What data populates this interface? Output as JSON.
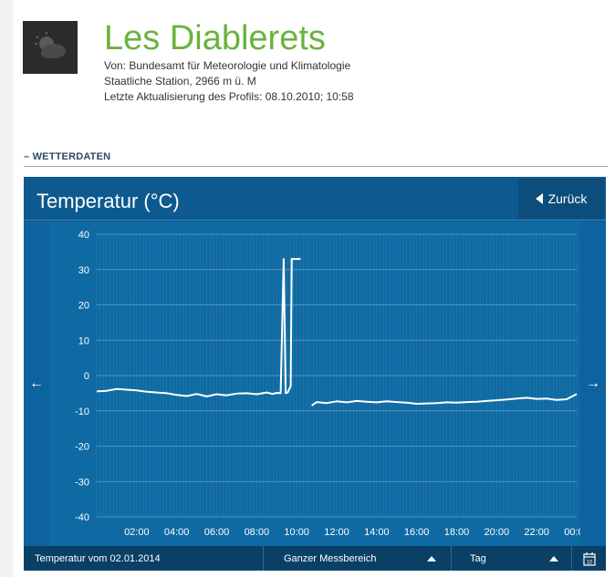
{
  "header": {
    "title": "Les Diablerets",
    "source_line": "Von: Bundesamt für Meteorologie und Klimatologie",
    "station_line": "Staatliche Station, 2966 m ü. M",
    "update_line": "Letzte Aktualisierung des Profils: 08.10.2010; 10:58"
  },
  "section": {
    "label": "– WETTERDATEN"
  },
  "panel": {
    "title": "Temperatur (°C)",
    "back_label": "Zurück"
  },
  "footer": {
    "date_label": "Temperatur vom 02.01.2014",
    "range_label": "Ganzer Messbereich",
    "interval_label": "Tag",
    "calendar_day": "10"
  },
  "colors": {
    "title_green": "#6ab33d",
    "panel_blue": "#0f6aa3",
    "footer_blue": "#0a3f66"
  },
  "chart_data": {
    "type": "line",
    "ylabel": "",
    "xlabel": "",
    "ylim": [
      -40,
      40
    ],
    "yticks": [
      40,
      30,
      20,
      10,
      0,
      -10,
      -20,
      -30,
      -40
    ],
    "xticks": [
      "02:00",
      "04:00",
      "06:00",
      "08:00",
      "10:00",
      "12:00",
      "14:00",
      "16:00",
      "18:00",
      "20:00",
      "22:00",
      "00:00"
    ],
    "xlim_hours": [
      0,
      24
    ],
    "grid": true,
    "series": [
      {
        "segments": [
          [
            [
              0.0,
              -4.5
            ],
            [
              0.5,
              -4.3
            ],
            [
              1.0,
              -3.8
            ],
            [
              1.5,
              -4.0
            ],
            [
              2.0,
              -4.2
            ],
            [
              2.5,
              -4.6
            ],
            [
              3.0,
              -4.8
            ],
            [
              3.5,
              -5.0
            ],
            [
              4.0,
              -5.5
            ],
            [
              4.5,
              -5.8
            ],
            [
              5.0,
              -5.2
            ],
            [
              5.5,
              -5.9
            ],
            [
              6.0,
              -5.3
            ],
            [
              6.5,
              -5.6
            ],
            [
              7.0,
              -5.1
            ],
            [
              7.5,
              -5.0
            ],
            [
              8.0,
              -5.3
            ],
            [
              8.5,
              -4.8
            ],
            [
              8.8,
              -5.2
            ],
            [
              9.0,
              -4.9
            ],
            [
              9.2,
              -5.0
            ],
            [
              9.35,
              33.0
            ],
            [
              9.45,
              -5.0
            ],
            [
              9.55,
              -4.8
            ],
            [
              9.7,
              -3.0
            ],
            [
              9.75,
              33.0
            ],
            [
              10.2,
              33.0
            ]
          ],
          [
            [
              10.75,
              -8.5
            ],
            [
              11.0,
              -7.5
            ],
            [
              11.5,
              -7.8
            ],
            [
              12.0,
              -7.3
            ],
            [
              12.5,
              -7.6
            ],
            [
              13.0,
              -7.2
            ],
            [
              13.5,
              -7.4
            ],
            [
              14.0,
              -7.6
            ],
            [
              14.5,
              -7.3
            ],
            [
              15.0,
              -7.5
            ],
            [
              15.5,
              -7.7
            ],
            [
              16.0,
              -8.0
            ],
            [
              16.5,
              -7.9
            ],
            [
              17.0,
              -7.8
            ],
            [
              17.5,
              -7.6
            ],
            [
              18.0,
              -7.7
            ],
            [
              18.5,
              -7.5
            ],
            [
              19.0,
              -7.4
            ],
            [
              19.5,
              -7.2
            ],
            [
              20.0,
              -7.0
            ],
            [
              20.5,
              -6.8
            ],
            [
              21.0,
              -6.5
            ],
            [
              21.5,
              -6.3
            ],
            [
              22.0,
              -6.6
            ],
            [
              22.5,
              -6.5
            ],
            [
              23.0,
              -6.9
            ],
            [
              23.5,
              -6.7
            ],
            [
              24.0,
              -5.2
            ]
          ]
        ]
      }
    ]
  }
}
